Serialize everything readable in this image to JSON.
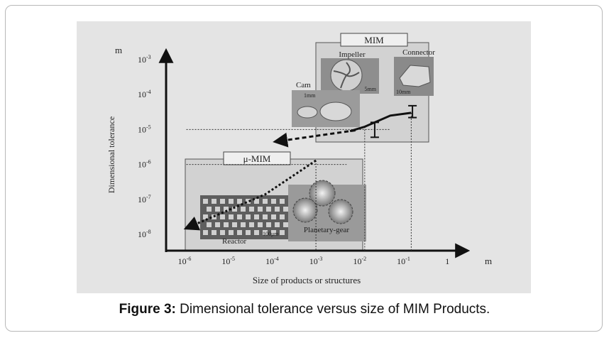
{
  "figure": {
    "label": "Figure 3:",
    "caption": "Dimensional tolerance versus size of MIM Products."
  },
  "chart_data": {
    "type": "line",
    "xlabel": "Size of products or structures",
    "ylabel": "Dimensional tolerance",
    "x_unit": "m",
    "y_unit": "m",
    "x_ticks": [
      {
        "label": "10",
        "exp": "-6",
        "value": 1e-06
      },
      {
        "label": "10",
        "exp": "-5",
        "value": 1e-05
      },
      {
        "label": "10",
        "exp": "-4",
        "value": 0.0001
      },
      {
        "label": "10",
        "exp": "-3",
        "value": 0.001
      },
      {
        "label": "10",
        "exp": "-2",
        "value": 0.01
      },
      {
        "label": "10",
        "exp": "-1",
        "value": 0.1
      },
      {
        "label": "1",
        "exp": "",
        "value": 1
      }
    ],
    "y_ticks": [
      {
        "label": "10",
        "exp": "-3",
        "value": 0.001
      },
      {
        "label": "10",
        "exp": "-4",
        "value": 0.0001
      },
      {
        "label": "10",
        "exp": "-5",
        "value": 1e-05
      },
      {
        "label": "10",
        "exp": "-6",
        "value": 1e-06
      },
      {
        "label": "10",
        "exp": "-7",
        "value": 1e-07
      },
      {
        "label": "10",
        "exp": "-8",
        "value": 1e-08
      }
    ],
    "x_scale": "log",
    "y_scale": "log",
    "series": [
      {
        "style": "solid",
        "points": [
          [
            0.006,
            9e-06
          ],
          [
            0.013,
            1.2e-05
          ],
          [
            0.05,
            2.5e-05
          ],
          [
            0.15,
            3e-05
          ]
        ]
      },
      {
        "style": "dotted",
        "points": [
          [
            0.001,
            1.3e-06
          ],
          [
            7e-05,
            1.4e-07
          ],
          [
            1.1e-06,
            1.5e-08
          ]
        ]
      }
    ],
    "regions": [
      {
        "label": "MIM",
        "photos": [
          {
            "label": "Impeller",
            "scale": "5mm"
          },
          {
            "label": "Connector",
            "scale": "10mm"
          },
          {
            "label": "Cam",
            "scale": "1mm"
          }
        ]
      },
      {
        "label": "μ-MIM",
        "photos": [
          {
            "label": "Reactor",
            "scale": "100μm"
          },
          {
            "label": "Planetary-gear",
            "scale": ""
          }
        ]
      }
    ],
    "grid": false
  }
}
